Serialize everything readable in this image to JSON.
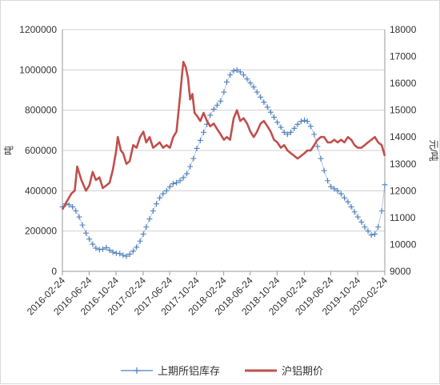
{
  "chart_data": {
    "type": "line",
    "title": "",
    "x": [
      "2016-02-24",
      "2016-06-24",
      "2016-10-24",
      "2017-02-24",
      "2017-06-24",
      "2017-10-24",
      "2018-02-24",
      "2018-06-24",
      "2018-10-24",
      "2019-02-24",
      "2019-06-24",
      "2019-10-24",
      "2020-02-24"
    ],
    "y_left": {
      "label": "吨",
      "min": 0,
      "max": 1200000,
      "ticks": [
        0,
        200000,
        400000,
        600000,
        800000,
        1000000,
        1200000
      ]
    },
    "y_right": {
      "label": "元/吨",
      "min": 9000,
      "max": 18000,
      "ticks": [
        9000,
        10000,
        11000,
        12000,
        13000,
        14000,
        15000,
        16000,
        17000,
        18000
      ]
    },
    "grid": true,
    "legend_position": "bottom",
    "series": [
      {
        "name": "上期所铝库存",
        "axis": "left",
        "marker": "plus",
        "color": "#4F81BD",
        "points": [
          [
            "2016-02-24",
            320000
          ],
          [
            "2016-03-10",
            335000
          ],
          [
            "2016-03-25",
            330000
          ],
          [
            "2016-04-10",
            320000
          ],
          [
            "2016-04-25",
            300000
          ],
          [
            "2016-05-10",
            270000
          ],
          [
            "2016-05-25",
            230000
          ],
          [
            "2016-06-10",
            190000
          ],
          [
            "2016-06-25",
            160000
          ],
          [
            "2016-07-10",
            135000
          ],
          [
            "2016-07-25",
            115000
          ],
          [
            "2016-08-10",
            108000
          ],
          [
            "2016-08-25",
            110000
          ],
          [
            "2016-09-10",
            118000
          ],
          [
            "2016-09-25",
            105000
          ],
          [
            "2016-10-10",
            95000
          ],
          [
            "2016-10-25",
            90000
          ],
          [
            "2016-11-10",
            88000
          ],
          [
            "2016-11-25",
            80000
          ],
          [
            "2016-12-10",
            75000
          ],
          [
            "2016-12-25",
            85000
          ],
          [
            "2017-01-10",
            100000
          ],
          [
            "2017-01-25",
            120000
          ],
          [
            "2017-02-10",
            150000
          ],
          [
            "2017-02-25",
            185000
          ],
          [
            "2017-03-10",
            220000
          ],
          [
            "2017-03-25",
            260000
          ],
          [
            "2017-04-10",
            300000
          ],
          [
            "2017-04-25",
            335000
          ],
          [
            "2017-05-10",
            365000
          ],
          [
            "2017-05-25",
            385000
          ],
          [
            "2017-06-10",
            400000
          ],
          [
            "2017-06-25",
            420000
          ],
          [
            "2017-07-10",
            435000
          ],
          [
            "2017-07-25",
            440000
          ],
          [
            "2017-08-10",
            450000
          ],
          [
            "2017-08-25",
            465000
          ],
          [
            "2017-09-10",
            485000
          ],
          [
            "2017-09-25",
            520000
          ],
          [
            "2017-10-10",
            560000
          ],
          [
            "2017-10-25",
            610000
          ],
          [
            "2017-11-10",
            650000
          ],
          [
            "2017-11-25",
            690000
          ],
          [
            "2017-12-10",
            730000
          ],
          [
            "2017-12-25",
            775000
          ],
          [
            "2018-01-10",
            805000
          ],
          [
            "2018-01-25",
            825000
          ],
          [
            "2018-02-10",
            845000
          ],
          [
            "2018-02-25",
            890000
          ],
          [
            "2018-03-10",
            940000
          ],
          [
            "2018-03-25",
            975000
          ],
          [
            "2018-04-10",
            995000
          ],
          [
            "2018-04-25",
            1000000
          ],
          [
            "2018-05-10",
            990000
          ],
          [
            "2018-05-25",
            975000
          ],
          [
            "2018-06-10",
            955000
          ],
          [
            "2018-06-25",
            935000
          ],
          [
            "2018-07-10",
            915000
          ],
          [
            "2018-07-25",
            890000
          ],
          [
            "2018-08-10",
            865000
          ],
          [
            "2018-08-25",
            840000
          ],
          [
            "2018-09-10",
            815000
          ],
          [
            "2018-09-25",
            790000
          ],
          [
            "2018-10-10",
            765000
          ],
          [
            "2018-10-25",
            740000
          ],
          [
            "2018-11-10",
            715000
          ],
          [
            "2018-11-25",
            690000
          ],
          [
            "2018-12-10",
            680000
          ],
          [
            "2018-12-25",
            690000
          ],
          [
            "2019-01-10",
            710000
          ],
          [
            "2019-01-25",
            730000
          ],
          [
            "2019-02-10",
            745000
          ],
          [
            "2019-02-25",
            750000
          ],
          [
            "2019-03-10",
            745000
          ],
          [
            "2019-03-25",
            720000
          ],
          [
            "2019-04-10",
            680000
          ],
          [
            "2019-04-25",
            620000
          ],
          [
            "2019-05-10",
            560000
          ],
          [
            "2019-05-25",
            500000
          ],
          [
            "2019-06-10",
            450000
          ],
          [
            "2019-06-25",
            420000
          ],
          [
            "2019-07-10",
            410000
          ],
          [
            "2019-07-25",
            400000
          ],
          [
            "2019-08-10",
            385000
          ],
          [
            "2019-08-25",
            365000
          ],
          [
            "2019-09-10",
            345000
          ],
          [
            "2019-09-25",
            320000
          ],
          [
            "2019-10-10",
            295000
          ],
          [
            "2019-10-25",
            270000
          ],
          [
            "2019-11-10",
            245000
          ],
          [
            "2019-11-25",
            220000
          ],
          [
            "2019-12-10",
            200000
          ],
          [
            "2019-12-25",
            180000
          ],
          [
            "2020-01-10",
            185000
          ],
          [
            "2020-01-25",
            220000
          ],
          [
            "2020-02-10",
            300000
          ],
          [
            "2020-02-24",
            430000
          ]
        ]
      },
      {
        "name": "沪铝期价",
        "axis": "right",
        "marker": "none",
        "color": "#C0504D",
        "points": [
          [
            "2016-02-24",
            11300
          ],
          [
            "2016-03-15",
            11600
          ],
          [
            "2016-04-05",
            11900
          ],
          [
            "2016-04-20",
            12000
          ],
          [
            "2016-05-01",
            12900
          ],
          [
            "2016-05-20",
            12400
          ],
          [
            "2016-06-10",
            12000
          ],
          [
            "2016-06-25",
            12200
          ],
          [
            "2016-07-10",
            12700
          ],
          [
            "2016-07-25",
            12400
          ],
          [
            "2016-08-10",
            12500
          ],
          [
            "2016-08-25",
            12100
          ],
          [
            "2016-09-10",
            12200
          ],
          [
            "2016-09-25",
            12300
          ],
          [
            "2016-10-10",
            12800
          ],
          [
            "2016-10-25",
            13500
          ],
          [
            "2016-11-01",
            14000
          ],
          [
            "2016-11-15",
            13500
          ],
          [
            "2016-11-25",
            13400
          ],
          [
            "2016-12-10",
            13000
          ],
          [
            "2016-12-25",
            13100
          ],
          [
            "2017-01-10",
            13700
          ],
          [
            "2017-01-25",
            13600
          ],
          [
            "2017-02-10",
            14000
          ],
          [
            "2017-02-25",
            14200
          ],
          [
            "2017-03-10",
            13800
          ],
          [
            "2017-03-25",
            14000
          ],
          [
            "2017-04-10",
            13600
          ],
          [
            "2017-04-25",
            13700
          ],
          [
            "2017-05-10",
            13800
          ],
          [
            "2017-05-25",
            13600
          ],
          [
            "2017-06-10",
            13700
          ],
          [
            "2017-06-25",
            13600
          ],
          [
            "2017-07-10",
            14000
          ],
          [
            "2017-07-25",
            14200
          ],
          [
            "2017-08-10",
            15500
          ],
          [
            "2017-08-20",
            16400
          ],
          [
            "2017-08-25",
            16800
          ],
          [
            "2017-09-05",
            16600
          ],
          [
            "2017-09-15",
            16200
          ],
          [
            "2017-09-25",
            15400
          ],
          [
            "2017-10-05",
            15600
          ],
          [
            "2017-10-15",
            14900
          ],
          [
            "2017-10-25",
            14800
          ],
          [
            "2017-11-10",
            14600
          ],
          [
            "2017-11-25",
            14900
          ],
          [
            "2017-12-10",
            14600
          ],
          [
            "2017-12-25",
            14400
          ],
          [
            "2018-01-10",
            14500
          ],
          [
            "2018-01-25",
            14300
          ],
          [
            "2018-02-10",
            14100
          ],
          [
            "2018-02-25",
            13900
          ],
          [
            "2018-03-10",
            14000
          ],
          [
            "2018-03-25",
            13900
          ],
          [
            "2018-04-10",
            14700
          ],
          [
            "2018-04-25",
            15000
          ],
          [
            "2018-05-10",
            14600
          ],
          [
            "2018-05-25",
            14700
          ],
          [
            "2018-06-10",
            14500
          ],
          [
            "2018-06-25",
            14200
          ],
          [
            "2018-07-10",
            14000
          ],
          [
            "2018-07-25",
            14200
          ],
          [
            "2018-08-10",
            14500
          ],
          [
            "2018-08-25",
            14600
          ],
          [
            "2018-09-10",
            14400
          ],
          [
            "2018-09-25",
            14200
          ],
          [
            "2018-10-10",
            13900
          ],
          [
            "2018-10-25",
            13800
          ],
          [
            "2018-11-10",
            13600
          ],
          [
            "2018-11-25",
            13700
          ],
          [
            "2018-12-10",
            13500
          ],
          [
            "2018-12-25",
            13400
          ],
          [
            "2019-01-10",
            13300
          ],
          [
            "2019-01-25",
            13200
          ],
          [
            "2019-02-10",
            13300
          ],
          [
            "2019-02-25",
            13400
          ],
          [
            "2019-03-10",
            13500
          ],
          [
            "2019-03-25",
            13500
          ],
          [
            "2019-04-10",
            13700
          ],
          [
            "2019-04-25",
            13900
          ],
          [
            "2019-05-10",
            14000
          ],
          [
            "2019-05-25",
            14000
          ],
          [
            "2019-06-10",
            13800
          ],
          [
            "2019-06-25",
            13800
          ],
          [
            "2019-07-10",
            13900
          ],
          [
            "2019-07-25",
            13800
          ],
          [
            "2019-08-10",
            13900
          ],
          [
            "2019-08-25",
            13800
          ],
          [
            "2019-09-10",
            14000
          ],
          [
            "2019-09-25",
            13900
          ],
          [
            "2019-10-10",
            13700
          ],
          [
            "2019-10-25",
            13600
          ],
          [
            "2019-11-10",
            13600
          ],
          [
            "2019-11-25",
            13700
          ],
          [
            "2019-12-10",
            13800
          ],
          [
            "2019-12-25",
            13900
          ],
          [
            "2020-01-10",
            14000
          ],
          [
            "2020-01-25",
            13800
          ],
          [
            "2020-02-10",
            13700
          ],
          [
            "2020-02-24",
            13300
          ]
        ]
      }
    ]
  }
}
